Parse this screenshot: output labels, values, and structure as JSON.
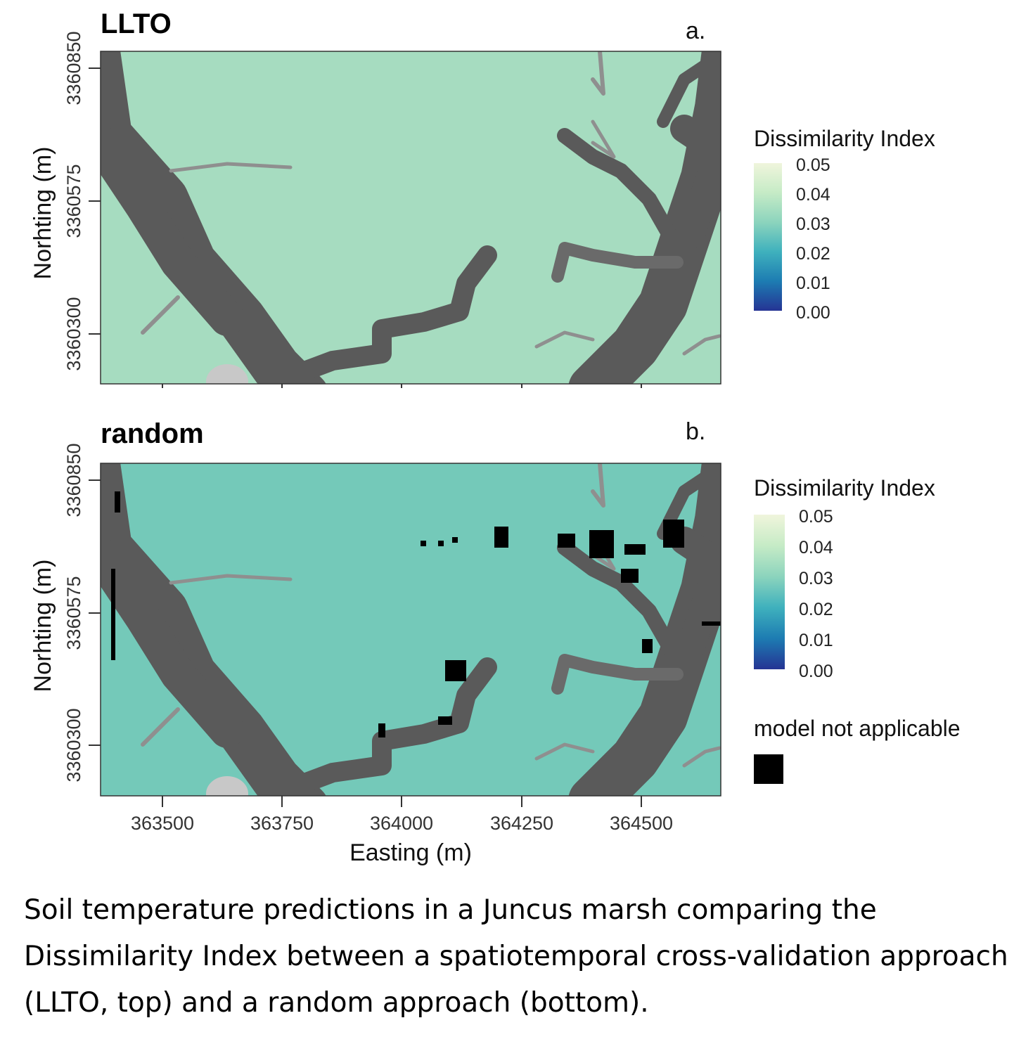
{
  "panels": [
    {
      "title": "LLTO",
      "tag": "a.",
      "fill": "#a6dcc0",
      "show_na": false
    },
    {
      "title": "random",
      "tag": "b.",
      "fill": "#74c9b9",
      "show_na": true
    }
  ],
  "axes": {
    "ylabel": "Norhting (m)",
    "xlabel": "Easting (m)",
    "yticks": [
      "3360850",
      "3360575",
      "3360300"
    ],
    "xticks": [
      "363500",
      "363750",
      "364000",
      "364250",
      "364500"
    ]
  },
  "legend": {
    "title": "Dissimilarity Index",
    "ticks": [
      "0.05",
      "0.04",
      "0.03",
      "0.02",
      "0.01",
      "0.00"
    ],
    "colors": [
      "#f0f5dc",
      "#c6ebc6",
      "#8cd4bd",
      "#3fb1bd",
      "#1d7cb2",
      "#253494"
    ],
    "na_label": "model not applicable",
    "na_color": "#000000"
  },
  "colors": {
    "channel": "#5a5a5a",
    "creek": "#8f8f8f"
  },
  "caption": "Soil temperature predictions in a Juncus marsh comparing the Dissimilarity Index between a spatiotemporal cross-validation approach (LLTO, top) and a random approach (bottom)."
}
